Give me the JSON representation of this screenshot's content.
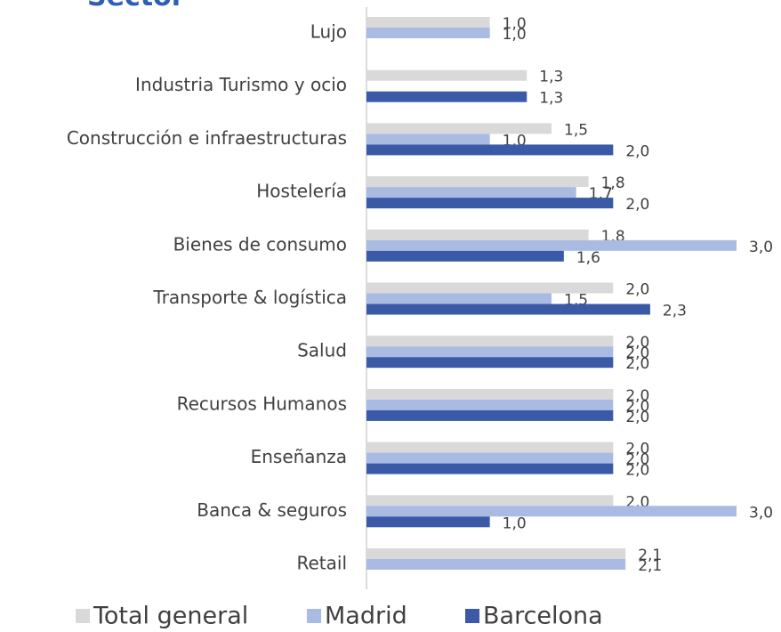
{
  "chart_data": {
    "type": "hbar",
    "title": "Sector",
    "categories": [
      "Lujo",
      "Industria Turismo y ocio",
      "Construcción e infraestructuras",
      "Hostelería",
      "Bienes de consumo",
      "Transporte & logística",
      "Salud",
      "Recursos Humanos",
      "Enseñanza",
      "Banca & seguros",
      "Retail"
    ],
    "series": [
      {
        "name": "Total general",
        "color": "#d9d9d9",
        "values": [
          1.0,
          1.3,
          1.5,
          1.8,
          1.8,
          2.0,
          2.0,
          2.0,
          2.0,
          2.0,
          2.1
        ],
        "value_labels": [
          "1,0",
          "1,3",
          "1,5",
          "1,8",
          "1,8",
          "2,0",
          "2,0",
          "2,0",
          "2,0",
          "2,0",
          "2,1"
        ]
      },
      {
        "name": "Madrid",
        "color": "#a9bbe3",
        "values": [
          1.0,
          null,
          1.0,
          1.7,
          3.0,
          1.5,
          2.0,
          2.0,
          2.0,
          3.0,
          2.1
        ],
        "value_labels": [
          "1,0",
          null,
          "1,0",
          "1,7",
          "3,0",
          "1,5",
          "2,0",
          "2,0",
          "2,0",
          "3,0",
          "2,1"
        ]
      },
      {
        "name": "Barcelona",
        "color": "#3a5aa8",
        "values": [
          null,
          1.3,
          2.0,
          2.0,
          1.6,
          2.3,
          2.0,
          2.0,
          2.0,
          1.0,
          null
        ],
        "value_labels": [
          null,
          "1,3",
          "2,0",
          "2,0",
          "1,6",
          "2,3",
          "2,0",
          "2,0",
          "2,0",
          "1,0",
          null
        ]
      }
    ]
  }
}
